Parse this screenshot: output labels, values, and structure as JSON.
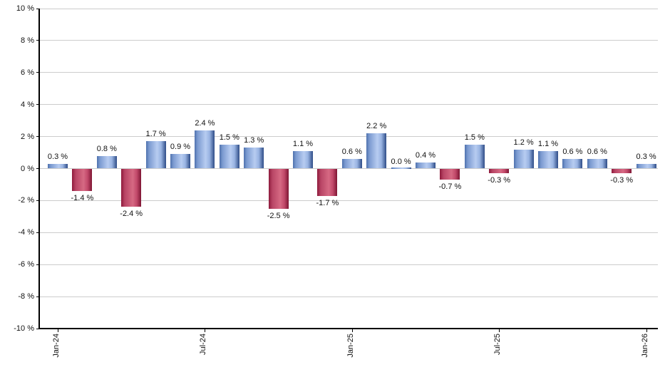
{
  "chart_data": {
    "type": "bar",
    "title": "",
    "unit": "%",
    "values": [
      0.3,
      -1.4,
      0.8,
      -2.4,
      1.7,
      0.9,
      2.4,
      1.5,
      1.3,
      -2.5,
      1.1,
      -1.7,
      0.6,
      2.2,
      0.0,
      0.4,
      -0.7,
      1.5,
      -0.3,
      1.2,
      1.1,
      0.6,
      0.6,
      -0.3,
      0.3
    ],
    "bar_labels": [
      "0.3 %",
      "-1.4 %",
      "0.8 %",
      "-2.4 %",
      "1.7 %",
      "0.9 %",
      "2.4 %",
      "1.5 %",
      "1.3 %",
      "-2.5 %",
      "1.1 %",
      "-1.7 %",
      "0.6 %",
      "2.2 %",
      "0.0 %",
      "0.4 %",
      "-0.7 %",
      "1.5 %",
      "-0.3 %",
      "1.2 %",
      "1.1 %",
      "0.6 %",
      "0.6 %",
      "-0.3 %",
      "0.3 %"
    ],
    "x_ticks": [
      {
        "index": 0,
        "label": "Jan-24"
      },
      {
        "index": 6,
        "label": "Jul-24"
      },
      {
        "index": 12,
        "label": "Jan-25"
      },
      {
        "index": 18,
        "label": "Jul-25"
      },
      {
        "index": 24,
        "label": "Jan-26"
      }
    ],
    "y_ticks": [
      {
        "value": 10,
        "label": "10 %"
      },
      {
        "value": 8,
        "label": "8 %"
      },
      {
        "value": 6,
        "label": "6 %"
      },
      {
        "value": 4,
        "label": "4 %"
      },
      {
        "value": 2,
        "label": "2 %"
      },
      {
        "value": 0,
        "label": "0 %"
      },
      {
        "value": -2,
        "label": "-2 %"
      },
      {
        "value": -4,
        "label": "-4 %"
      },
      {
        "value": -6,
        "label": "-6 %"
      },
      {
        "value": -8,
        "label": "-8 %"
      },
      {
        "value": -10,
        "label": "-10 %"
      }
    ],
    "ylim": [
      -10,
      10
    ],
    "grid": true,
    "legend": "none",
    "colors": {
      "gridline": "#cccccc",
      "axis": "#000000",
      "text": "#111111",
      "positive_stops": [
        [
          "#4f72ae",
          0
        ],
        [
          "#7b9ad0",
          15
        ],
        [
          "#b7ccf1",
          55
        ],
        [
          "#99b4e2",
          75
        ],
        [
          "#2e4c87",
          100
        ]
      ],
      "negative_stops": [
        [
          "#8e1a3c",
          0
        ],
        [
          "#b84565",
          18
        ],
        [
          "#d66983",
          58
        ],
        [
          "#c2496a",
          78
        ],
        [
          "#7e1634",
          100
        ]
      ]
    }
  }
}
